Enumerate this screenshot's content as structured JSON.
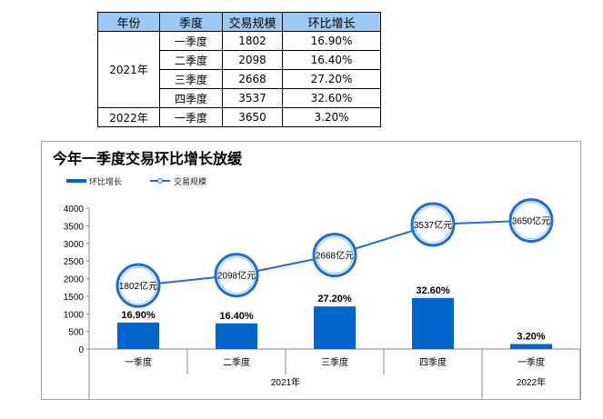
{
  "table": {
    "headers": [
      "年份",
      "季度",
      "交易规模",
      "环比增长"
    ],
    "groups": [
      {
        "year": "2021年",
        "rows": [
          [
            "一季度",
            "1802",
            "16.90%"
          ],
          [
            "二季度",
            "2098",
            "16.40%"
          ],
          [
            "三季度",
            "2668",
            "27.20%"
          ],
          [
            "四季度",
            "3537",
            "32.60%"
          ]
        ]
      },
      {
        "year": "2022年",
        "rows": [
          [
            "一季度",
            "3650",
            "3.20%"
          ]
        ]
      }
    ]
  },
  "chart_data": {
    "type": "bar+line",
    "title": "今年一季度交易环比增长放缓",
    "legend": [
      "环比增长",
      "交易规模"
    ],
    "legend_position": "top-left",
    "categories": [
      "一季度",
      "二季度",
      "三季度",
      "四季度",
      "一季度"
    ],
    "groups": [
      {
        "label": "2021年",
        "span": 4
      },
      {
        "label": "2022年",
        "span": 1
      }
    ],
    "series": [
      {
        "name": "环比增长",
        "type": "bar",
        "values": [
          16.9,
          16.4,
          27.2,
          32.6,
          3.2
        ],
        "labels": [
          "16.90%",
          "16.40%",
          "27.20%",
          "32.60%",
          "3.20%"
        ],
        "axis_range": [
          0,
          90
        ],
        "color": "#0066cc"
      },
      {
        "name": "交易规模",
        "type": "line",
        "values": [
          1802,
          2098,
          2668,
          3537,
          3650
        ],
        "labels": [
          "1802亿元",
          "2098亿元",
          "2668亿元",
          "3537亿元",
          "3650亿元"
        ],
        "color": "#1a6fd0"
      }
    ],
    "yticks": [
      "0",
      "500",
      "1000",
      "1500",
      "2000",
      "2500",
      "3000",
      "3500",
      "4000"
    ],
    "ylim": [
      0,
      4000
    ]
  }
}
